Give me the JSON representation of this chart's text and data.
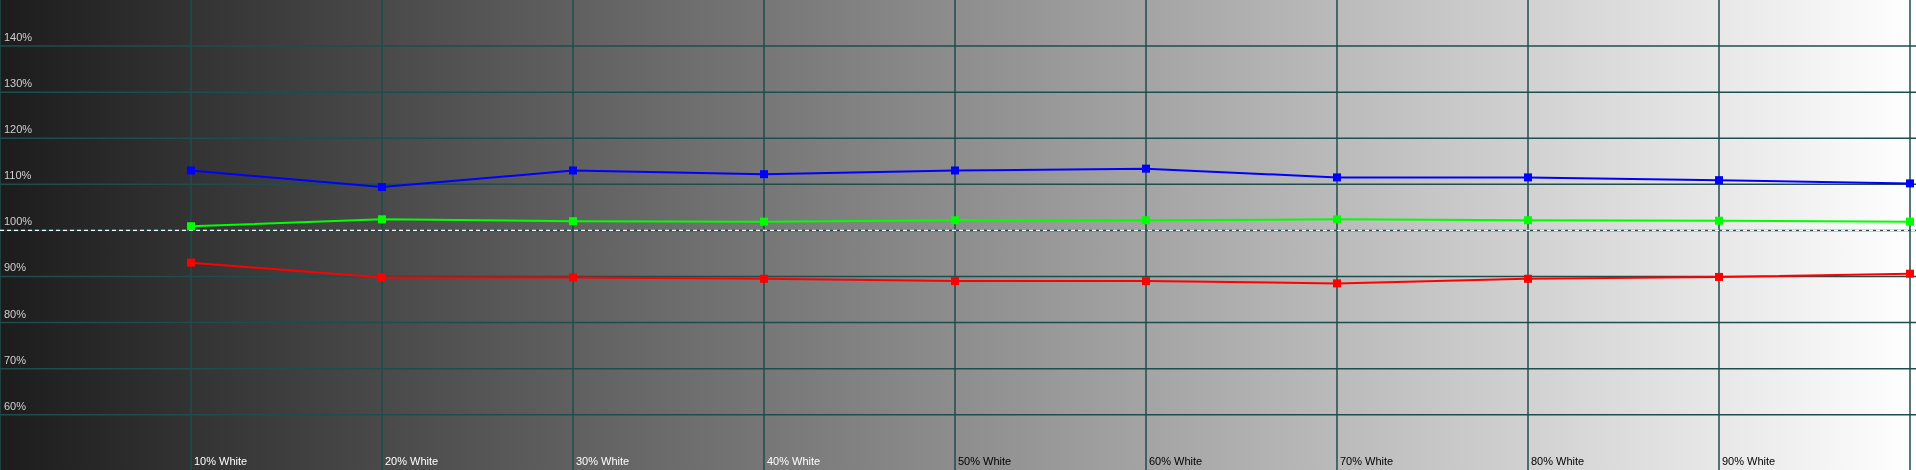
{
  "chart_data": {
    "type": "line",
    "categories": [
      "10% White",
      "20% White",
      "30% White",
      "40% White",
      "50% White",
      "60% White",
      "70% White",
      "80% White",
      "90% White",
      null
    ],
    "series": [
      {
        "color": "#0000ff",
        "values": [
          113.0,
          109.4,
          113.0,
          112.2,
          113.0,
          113.4,
          111.5,
          111.5,
          110.9,
          110.2
        ]
      },
      {
        "color": "#00ff00",
        "values": [
          100.9,
          102.4,
          102.0,
          101.9,
          102.2,
          102.2,
          102.4,
          102.2,
          102.1,
          101.9
        ]
      },
      {
        "color": "#ff0000",
        "values": [
          93.0,
          89.8,
          89.8,
          89.5,
          89.0,
          89.0,
          88.5,
          89.5,
          89.9,
          90.6
        ]
      }
    ],
    "ylim": [
      48,
      150
    ],
    "yticks": [
      {
        "value": 60,
        "label": "60%"
      },
      {
        "value": 70,
        "label": "70%"
      },
      {
        "value": 80,
        "label": "80%"
      },
      {
        "value": 90,
        "label": "90%"
      },
      {
        "value": 100,
        "label": "100%"
      },
      {
        "value": 110,
        "label": "110%"
      },
      {
        "value": 120,
        "label": "120%"
      },
      {
        "value": 130,
        "label": "130%"
      },
      {
        "value": 140,
        "label": "140%"
      }
    ],
    "grid": true,
    "marker": "square",
    "line_style": "solid",
    "ref_lines": [
      {
        "axis": "y",
        "value": 100,
        "color": "#ffffff",
        "line_style": "dashed"
      }
    ]
  }
}
